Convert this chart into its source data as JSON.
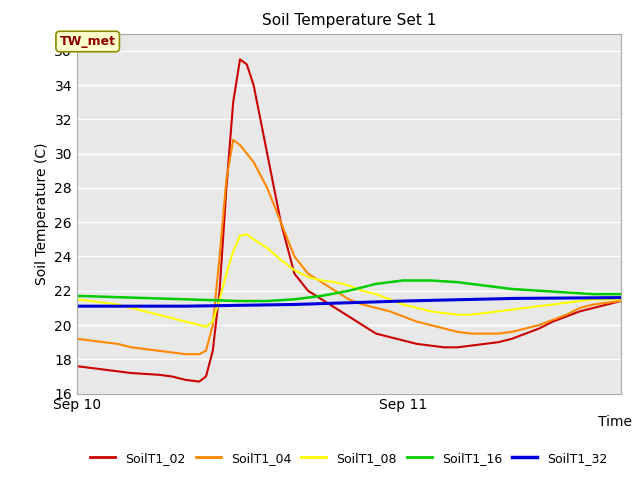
{
  "title": "Soil Temperature Set 1",
  "xlabel": "Time",
  "ylabel": "Soil Temperature (C)",
  "ylim": [
    16,
    37
  ],
  "yticks": [
    16,
    18,
    20,
    22,
    24,
    26,
    28,
    30,
    32,
    34,
    36
  ],
  "xlim": [
    0,
    40
  ],
  "xticks": [
    0,
    24
  ],
  "xtick_labels": [
    "Sep 10",
    "Sep 11"
  ],
  "bg_color": "#e8e8e8",
  "fig_color": "#ffffff",
  "annotation_text": "TW_met",
  "annotation_bg": "#ffffcc",
  "annotation_border": "#8b8b00",
  "series": {
    "SoilT1_02": {
      "color": "#cc0000",
      "x": [
        0,
        1,
        2,
        3,
        4,
        5,
        6,
        7,
        8,
        9,
        9.5,
        10,
        10.5,
        11,
        11.5,
        12,
        12.5,
        13,
        14,
        15,
        16,
        17,
        18,
        19,
        20,
        21,
        22,
        23,
        24,
        25,
        26,
        27,
        28,
        29,
        30,
        31,
        32,
        33,
        34,
        35,
        36,
        37,
        38,
        39,
        40
      ],
      "y": [
        17.6,
        17.5,
        17.4,
        17.3,
        17.2,
        17.15,
        17.1,
        17.0,
        16.8,
        16.7,
        17.0,
        18.5,
        22.0,
        28.0,
        33.0,
        35.5,
        35.2,
        34.0,
        30.0,
        26.0,
        23.0,
        22.0,
        21.5,
        21.0,
        20.5,
        20.0,
        19.5,
        19.3,
        19.1,
        18.9,
        18.8,
        18.7,
        18.7,
        18.8,
        18.9,
        19.0,
        19.2,
        19.5,
        19.8,
        20.2,
        20.5,
        20.8,
        21.0,
        21.2,
        21.4
      ]
    },
    "SoilT1_04": {
      "color": "#ff8800",
      "x": [
        0,
        1,
        2,
        3,
        4,
        5,
        6,
        7,
        8,
        9,
        9.5,
        10,
        10.5,
        11,
        11.5,
        12,
        12.5,
        13,
        14,
        15,
        16,
        17,
        18,
        19,
        20,
        21,
        22,
        23,
        24,
        25,
        26,
        27,
        28,
        29,
        30,
        31,
        32,
        33,
        34,
        35,
        36,
        37,
        38,
        39,
        40
      ],
      "y": [
        19.2,
        19.1,
        19.0,
        18.9,
        18.7,
        18.6,
        18.5,
        18.4,
        18.3,
        18.3,
        18.5,
        20.0,
        24.0,
        28.5,
        30.8,
        30.5,
        30.0,
        29.5,
        28.0,
        26.0,
        24.0,
        23.0,
        22.5,
        22.0,
        21.5,
        21.2,
        21.0,
        20.8,
        20.5,
        20.2,
        20.0,
        19.8,
        19.6,
        19.5,
        19.5,
        19.5,
        19.6,
        19.8,
        20.0,
        20.3,
        20.6,
        21.0,
        21.2,
        21.3,
        21.4
      ]
    },
    "SoilT1_08": {
      "color": "#ffff00",
      "x": [
        0,
        1,
        2,
        3,
        4,
        5,
        6,
        7,
        8,
        9,
        9.5,
        10,
        10.5,
        11,
        11.5,
        12,
        12.5,
        13,
        14,
        15,
        16,
        17,
        18,
        19,
        20,
        21,
        22,
        23,
        24,
        25,
        26,
        27,
        28,
        29,
        30,
        31,
        32,
        33,
        34,
        35,
        36,
        37,
        38,
        39,
        40
      ],
      "y": [
        21.5,
        21.4,
        21.3,
        21.2,
        21.0,
        20.8,
        20.6,
        20.4,
        20.2,
        20.0,
        19.9,
        20.2,
        21.5,
        23.0,
        24.3,
        25.2,
        25.3,
        25.0,
        24.5,
        23.8,
        23.2,
        22.8,
        22.6,
        22.5,
        22.3,
        22.0,
        21.8,
        21.5,
        21.2,
        21.0,
        20.8,
        20.7,
        20.6,
        20.6,
        20.7,
        20.8,
        20.9,
        21.0,
        21.1,
        21.2,
        21.3,
        21.4,
        21.5,
        21.5,
        21.5
      ]
    },
    "SoilT1_16": {
      "color": "#00cc00",
      "x": [
        0,
        2,
        4,
        6,
        8,
        10,
        12,
        14,
        16,
        18,
        20,
        22,
        24,
        26,
        28,
        30,
        32,
        34,
        36,
        38,
        40
      ],
      "y": [
        21.7,
        21.65,
        21.6,
        21.55,
        21.5,
        21.45,
        21.4,
        21.4,
        21.5,
        21.7,
        22.0,
        22.4,
        22.6,
        22.6,
        22.5,
        22.3,
        22.1,
        22.0,
        21.9,
        21.8,
        21.8
      ]
    },
    "SoilT1_32": {
      "color": "#0000dd",
      "x": [
        0,
        8,
        16,
        24,
        32,
        40
      ],
      "y": [
        21.1,
        21.1,
        21.2,
        21.4,
        21.55,
        21.6
      ]
    }
  }
}
